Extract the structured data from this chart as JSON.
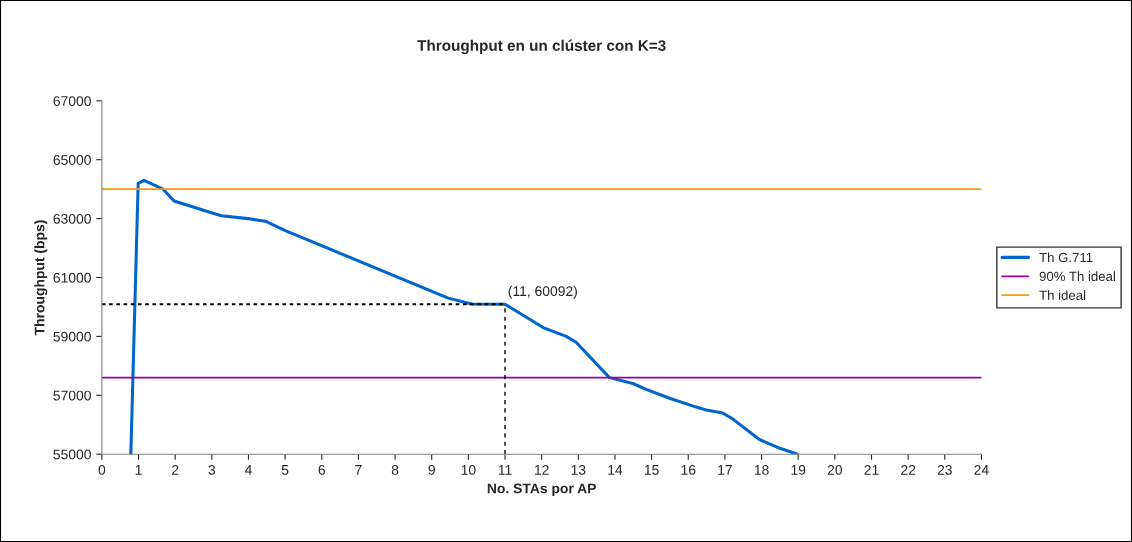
{
  "chart_data": {
    "type": "line",
    "title": "Throughput en un clúster con K=3",
    "xlabel": "No. STAs por AP",
    "ylabel": "Throughput (bps)",
    "xlim": [
      0,
      24
    ],
    "xticks": [
      0,
      1,
      2,
      3,
      4,
      5,
      6,
      7,
      8,
      9,
      10,
      11,
      12,
      13,
      14,
      15,
      16,
      17,
      18,
      19,
      20,
      21,
      22,
      23,
      24
    ],
    "ylim": [
      55000,
      67000
    ],
    "yticks": [
      55000,
      57000,
      59000,
      61000,
      63000,
      65000,
      67000
    ],
    "grid": false,
    "legend": "right",
    "marker": "none",
    "line_style": "solid",
    "series": [
      {
        "name": "Th G.711",
        "color": "#0066cc",
        "x": [
          0.79,
          0.99,
          1.15,
          1.67,
          1.97,
          2.99,
          3.26,
          3.99,
          4.49,
          4.99,
          9.45,
          10.09,
          11,
          12.04,
          12.67,
          12.94,
          13.85,
          14.49,
          14.85,
          15.49,
          16.22,
          16.49,
          16.94,
          17.21,
          17.94,
          18.5,
          18.98
        ],
        "values": [
          55000,
          64200,
          64300,
          64000,
          63600,
          63200,
          63100,
          63000,
          62900,
          62600,
          60300,
          60100,
          60092,
          59300,
          59000,
          58800,
          57600,
          57400,
          57200,
          56900,
          56600,
          56500,
          56400,
          56200,
          55500,
          55200,
          55000
        ]
      }
    ],
    "ref_lines": [
      {
        "axis": "y",
        "value": 57600,
        "label": "90% Th ideal",
        "color": "#990099",
        "line_style": "solid"
      },
      {
        "axis": "y",
        "value": 64000,
        "label": "Th ideal",
        "color": "#ff9900",
        "line_style": "solid"
      }
    ],
    "annotations": [
      {
        "text": "(11, 60092)",
        "x": 11,
        "y": 60092
      }
    ]
  }
}
